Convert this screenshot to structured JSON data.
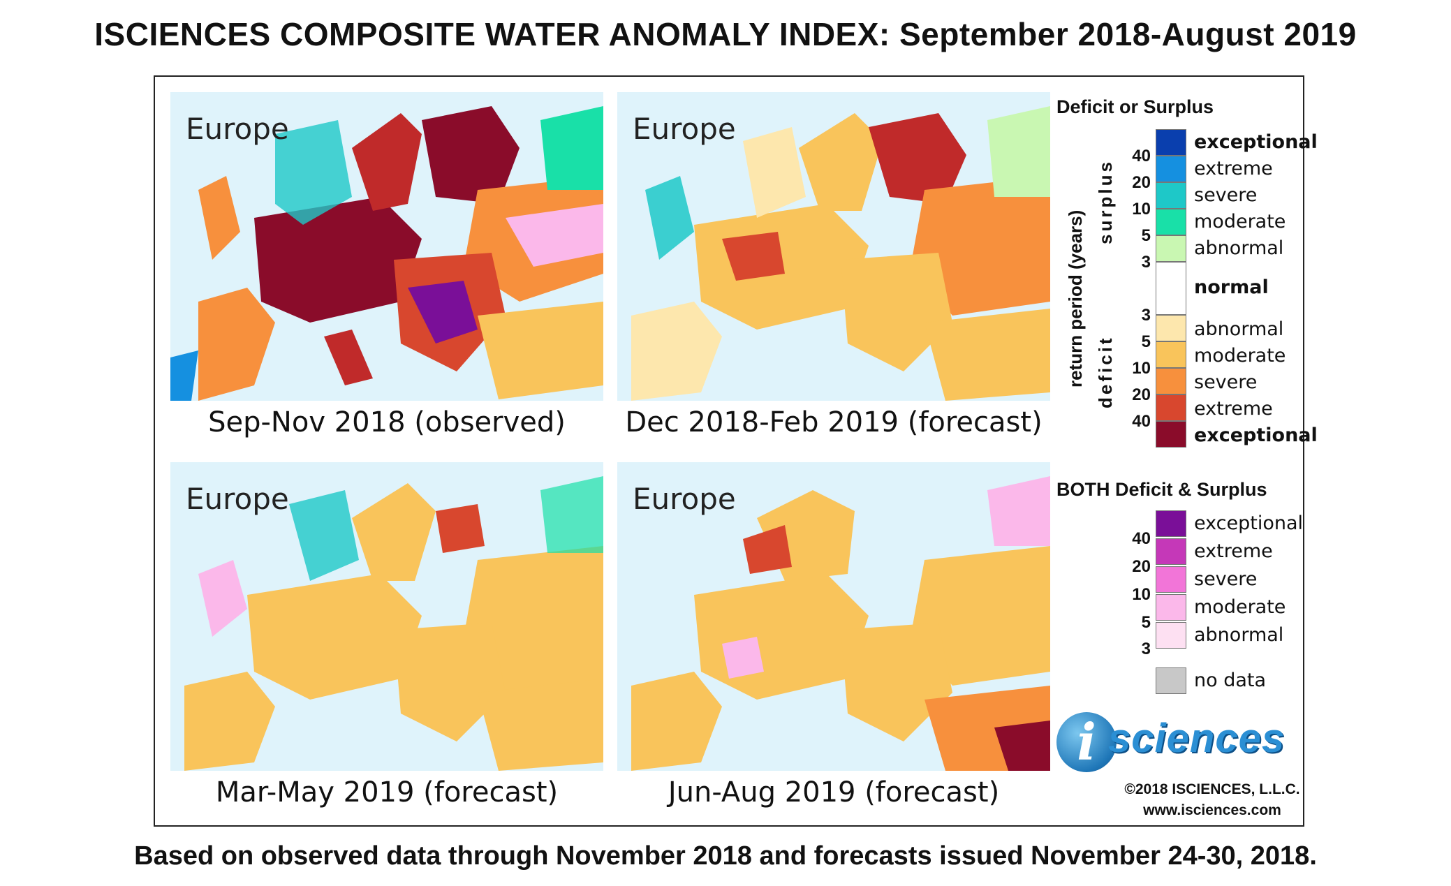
{
  "title": "ISCIENCES COMPOSITE WATER ANOMALY INDEX: September 2018-August 2019",
  "footer": "Based on observed data through November 2018 and forecasts issued November 24-30, 2018.",
  "panels": [
    {
      "region": "Europe",
      "caption": "Sep-Nov 2018 (observed)",
      "dominant": "deficit-severe"
    },
    {
      "region": "Europe",
      "caption": "Dec 2018-Feb 2019 (forecast)",
      "dominant": "deficit-moderate"
    },
    {
      "region": "Europe",
      "caption": "Mar-May 2019 (forecast)",
      "dominant": "deficit-moderate"
    },
    {
      "region": "Europe",
      "caption": "Jun-Aug 2019 (forecast)",
      "dominant": "deficit-moderate"
    }
  ],
  "legend": {
    "title_main": "Deficit or Surplus",
    "axis_label": "return period (years)",
    "surplus_label": "surplus",
    "deficit_label": "deficit",
    "normal_label": "normal",
    "surplus_items": [
      {
        "label": "exceptional",
        "color": "#0a3fae",
        "bold": true
      },
      {
        "label": "extreme",
        "color": "#1590e0"
      },
      {
        "label": "severe",
        "color": "#1ec8c8"
      },
      {
        "label": "moderate",
        "color": "#19e0a8"
      },
      {
        "label": "abnormal",
        "color": "#c9f7b2"
      }
    ],
    "normal_color": "#ffffff",
    "deficit_items": [
      {
        "label": "abnormal",
        "color": "#fde7ad"
      },
      {
        "label": "moderate",
        "color": "#f9c45b"
      },
      {
        "label": "severe",
        "color": "#f7903d"
      },
      {
        "label": "extreme",
        "color": "#d8472e"
      },
      {
        "label": "exceptional",
        "color": "#8a0c2a",
        "bold": true
      }
    ],
    "surplus_ticks": [
      "40",
      "20",
      "10",
      "5",
      "3"
    ],
    "deficit_ticks": [
      "3",
      "5",
      "10",
      "20",
      "40"
    ],
    "both_title": "BOTH Deficit & Surplus",
    "both_items": [
      {
        "label": "exceptional",
        "color": "#7a0f98"
      },
      {
        "label": "extreme",
        "color": "#c538b8"
      },
      {
        "label": "severe",
        "color": "#f275d8"
      },
      {
        "label": "moderate",
        "color": "#fbb8ea"
      },
      {
        "label": "abnormal",
        "color": "#fde0f2"
      }
    ],
    "both_ticks": [
      "40",
      "20",
      "10",
      "5",
      "3"
    ],
    "no_data_label": "no data",
    "no_data_color": "#c8c8c8"
  },
  "logo": {
    "letter": "i",
    "text": "sciences",
    "icon": "isciences-logo-icon"
  },
  "copyright": "©2018 ISCIENCES, L.L.C.",
  "website": "www.isciences.com"
}
